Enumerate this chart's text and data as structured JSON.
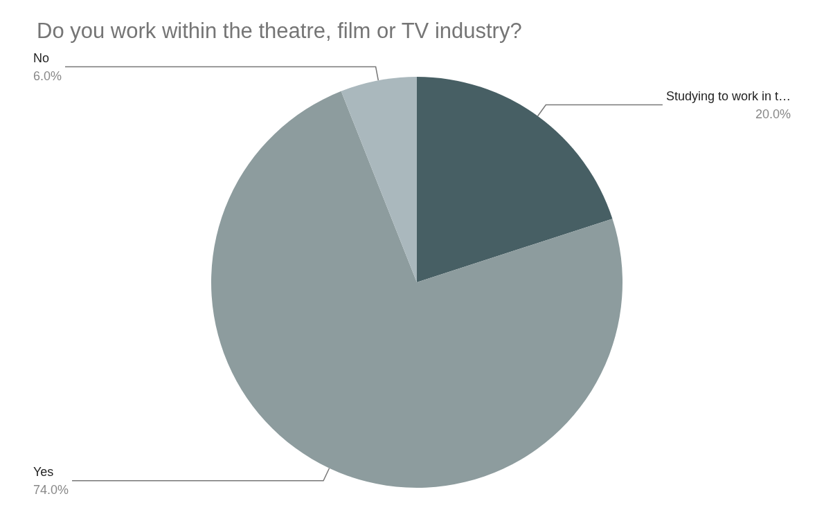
{
  "chart_data": {
    "type": "pie",
    "title": "Do you work within the theatre, film or TV industry?",
    "categories": [
      "Studying to work in t…",
      "Yes",
      "No"
    ],
    "values": [
      20,
      74,
      6
    ],
    "value_labels": [
      "20.0%",
      "74.0%",
      "6.0%"
    ],
    "colors": [
      "#475f64",
      "#8d9c9e",
      "#aab8bd"
    ],
    "legend": false
  }
}
